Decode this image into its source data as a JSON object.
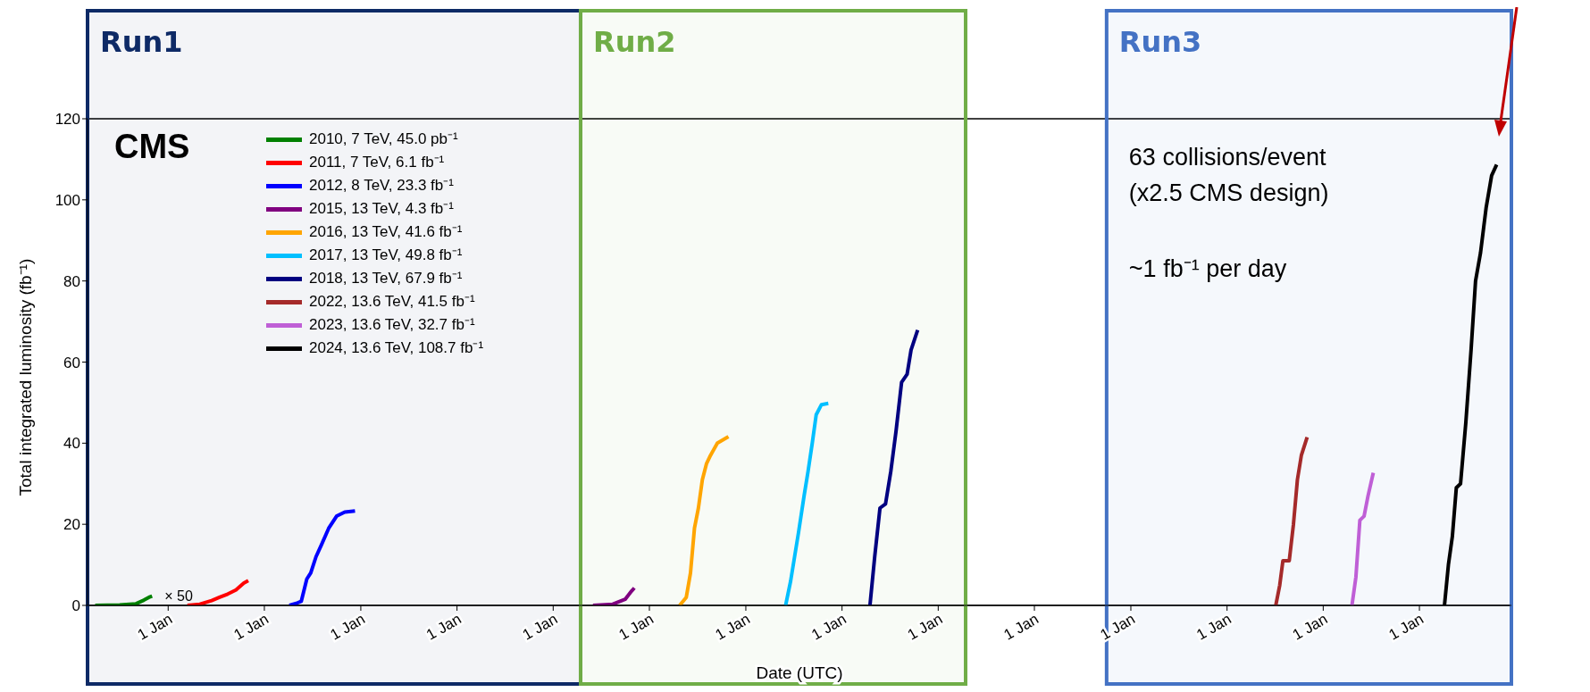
{
  "chart_data": {
    "type": "line",
    "xlabel": "Date (UTC)",
    "ylabel": "Total integrated luminosity (fb⁻¹)",
    "xlim": [
      "2010-03-01",
      "2024-12-15"
    ],
    "xticks": [
      {
        "value": "2011-01-01",
        "label": "1 Jan"
      },
      {
        "value": "2012-01-01",
        "label": "1 Jan"
      },
      {
        "value": "2013-01-01",
        "label": "1 Jan"
      },
      {
        "value": "2014-01-01",
        "label": "1 Jan"
      },
      {
        "value": "2015-01-01",
        "label": "1 Jan"
      },
      {
        "value": "2016-01-01",
        "label": "1 Jan"
      },
      {
        "value": "2017-01-01",
        "label": "1 Jan"
      },
      {
        "value": "2018-01-01",
        "label": "1 Jan"
      },
      {
        "value": "2019-01-01",
        "label": "1 Jan"
      },
      {
        "value": "2020-01-01",
        "label": "1 Jan"
      },
      {
        "value": "2021-01-01",
        "label": "1 Jan"
      },
      {
        "value": "2022-01-01",
        "label": "1 Jan"
      },
      {
        "value": "2023-01-01",
        "label": "1 Jan"
      },
      {
        "value": "2024-01-01",
        "label": "1 Jan"
      }
    ],
    "ylim": [
      0,
      120
    ],
    "yticks": [
      0,
      20,
      40,
      60,
      80,
      100,
      120
    ],
    "grid": false,
    "legend": "top left",
    "marker": "none",
    "line_style": "solid",
    "series": [
      {
        "name": "2010, 7 TeV, 45.0 pb⁻¹",
        "color": "#008000",
        "x": [
          "2010-03-30",
          "2010-07-01",
          "2010-09-01",
          "2010-10-01",
          "2010-10-20",
          "2010-11-01"
        ],
        "values": [
          0,
          0.1,
          0.4,
          1.3,
          2.0,
          2.3
        ]
      },
      {
        "name": "2011, 7 TeV, 6.1 fb⁻¹",
        "color": "#ff0000",
        "x": [
          "2011-03-15",
          "2011-05-01",
          "2011-06-15",
          "2011-07-15",
          "2011-08-15",
          "2011-09-15",
          "2011-10-15",
          "2011-11-01"
        ],
        "values": [
          0,
          0.3,
          1.2,
          2.0,
          2.8,
          3.8,
          5.5,
          6.1
        ]
      },
      {
        "name": "2012, 8 TeV, 23.3 fb⁻¹",
        "color": "#0000ff",
        "x": [
          "2012-04-05",
          "2012-05-01",
          "2012-05-20",
          "2012-06-10",
          "2012-06-25",
          "2012-07-15",
          "2012-08-05",
          "2012-09-01",
          "2012-10-01",
          "2012-11-01",
          "2012-12-10"
        ],
        "values": [
          0,
          0.5,
          1,
          6.5,
          8,
          12,
          15,
          19,
          22,
          23,
          23.3
        ]
      },
      {
        "name": "2015, 13 TeV, 4.3 fb⁻¹",
        "color": "#800080",
        "x": [
          "2015-06-01",
          "2015-08-15",
          "2015-10-01",
          "2015-10-25",
          "2015-11-05"
        ],
        "values": [
          0,
          0.3,
          1.5,
          3.5,
          4.3
        ]
      },
      {
        "name": "2016, 13 TeV, 41.6 fb⁻¹",
        "color": "#ffa500",
        "x": [
          "2016-04-25",
          "2016-05-20",
          "2016-06-05",
          "2016-06-20",
          "2016-07-05",
          "2016-07-20",
          "2016-08-05",
          "2016-08-20",
          "2016-09-15",
          "2016-10-27"
        ],
        "values": [
          0,
          2,
          8,
          19,
          24,
          31,
          35,
          37,
          40,
          41.6
        ]
      },
      {
        "name": "2017, 13 TeV, 49.8 fb⁻¹",
        "color": "#00bfff",
        "x": [
          "2017-06-01",
          "2017-06-20",
          "2017-07-05",
          "2017-07-20",
          "2017-08-10",
          "2017-08-25",
          "2017-09-10",
          "2017-09-25",
          "2017-10-15",
          "2017-11-10"
        ],
        "values": [
          0,
          6,
          12,
          18,
          27,
          33,
          40,
          47,
          49.5,
          49.8
        ]
      },
      {
        "name": "2018, 13 TeV, 67.9 fb⁻¹",
        "color": "#000080",
        "x": [
          "2018-04-17",
          "2018-05-05",
          "2018-05-25",
          "2018-06-15",
          "2018-07-05",
          "2018-07-25",
          "2018-08-15",
          "2018-09-05",
          "2018-09-20",
          "2018-10-15"
        ],
        "values": [
          0,
          12,
          24,
          25,
          33,
          43,
          55,
          57,
          63,
          67.9
        ]
      },
      {
        "name": "2022, 13.6 TeV, 41.5 fb⁻¹",
        "color": "#a52a2a",
        "x": [
          "2022-07-05",
          "2022-07-20",
          "2022-08-01",
          "2022-08-25",
          "2022-09-10",
          "2022-09-25",
          "2022-10-10",
          "2022-11-01"
        ],
        "values": [
          0,
          5,
          11,
          11,
          20,
          31,
          37,
          41.5
        ]
      },
      {
        "name": "2023, 13.6 TeV, 32.7 fb⁻¹",
        "color": "#bf5fd6",
        "x": [
          "2023-04-20",
          "2023-05-05",
          "2023-05-20",
          "2023-06-05",
          "2023-06-20",
          "2023-07-10"
        ],
        "values": [
          0,
          7,
          21,
          22,
          27,
          32.7
        ]
      },
      {
        "name": "2024, 13.6 TeV, 108.7 fb⁻¹",
        "color": "#000000",
        "x": [
          "2024-04-05",
          "2024-04-20",
          "2024-05-05",
          "2024-05-20",
          "2024-06-05",
          "2024-06-25",
          "2024-07-15",
          "2024-08-01",
          "2024-08-20",
          "2024-09-10",
          "2024-10-01",
          "2024-10-20"
        ],
        "values": [
          0,
          10,
          17,
          29,
          30,
          45,
          63,
          80,
          87,
          98,
          106,
          108.7
        ]
      }
    ],
    "bands": [
      {
        "axis": "x",
        "from": "2010-03-01",
        "to": "2015-04-15",
        "label": "Run1",
        "color": "#0e2a66"
      },
      {
        "axis": "x",
        "from": "2015-04-15",
        "to": "2019-04-15",
        "label": "Run2",
        "color": "#70ad47"
      },
      {
        "axis": "x",
        "from": "2020-10-01",
        "to": "2024-12-15",
        "label": "Run3",
        "color": "#4472c4"
      }
    ],
    "annotations": [
      "CMS",
      {
        "text": "× 50",
        "x": "2010-11-01",
        "y": 2.3
      },
      "63 collisions/event",
      "(x2.5 CMS design)",
      "~1 fb⁻¹ per day"
    ]
  }
}
